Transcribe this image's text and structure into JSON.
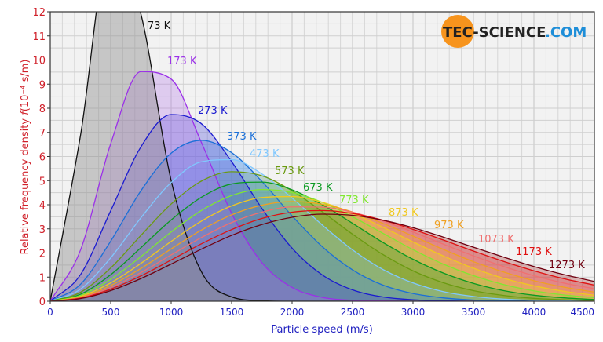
{
  "chart_data": {
    "type": "area",
    "title": "",
    "xlabel": "Particle speed (m/s)",
    "ylabel": "Relative frequency density f (10⁻⁴ s/m)",
    "ylabel_parts": {
      "text": "Relative frequency density ",
      "symbol": "f",
      "unit": "(10⁻⁴ s/m)"
    },
    "xlim": [
      0,
      4500
    ],
    "ylim": [
      0,
      12
    ],
    "x_ticks": [
      "0",
      "500",
      "1000",
      "1500",
      "2000",
      "2500",
      "3000",
      "3500",
      "4000",
      "4500"
    ],
    "y_ticks": [
      "0",
      "1",
      "2",
      "3",
      "4",
      "5",
      "6",
      "7",
      "8",
      "9",
      "10",
      "11",
      "12"
    ],
    "grid": true,
    "x": [
      0,
      250,
      500,
      750,
      1000,
      1250,
      1500,
      1750,
      2000,
      2250,
      2500,
      2750,
      3000,
      3250,
      3500,
      3750,
      4000,
      4250,
      4500
    ],
    "series": [
      {
        "name": "73 K",
        "color": "#111111",
        "fill": "#909090",
        "values": [
          0,
          6.87,
          14.81,
          11.9,
          5.0,
          1.22,
          0.18,
          0.02,
          0,
          0,
          0,
          0,
          0,
          0,
          0,
          0,
          0,
          0,
          0
        ]
      },
      {
        "name": "173 K",
        "color": "#9b30e8",
        "fill": "#b070e8",
        "values": [
          0,
          2.12,
          6.53,
          9.52,
          9.21,
          6.58,
          3.64,
          1.6,
          0.57,
          0.16,
          0.04,
          0.01,
          0,
          0,
          0,
          0,
          0,
          0,
          0
        ]
      },
      {
        "name": "273 K",
        "color": "#1a1ad0",
        "fill": "#4040d8",
        "values": [
          0,
          1.1,
          3.75,
          6.4,
          7.74,
          7.36,
          5.79,
          3.85,
          2.2,
          1.09,
          0.47,
          0.18,
          0.06,
          0.02,
          0,
          0,
          0,
          0,
          0
        ]
      },
      {
        "name": "373 K",
        "color": "#1a6fd8",
        "fill": "#3a80e0",
        "values": [
          0,
          0.7,
          2.49,
          4.58,
          6.14,
          6.67,
          6.16,
          4.97,
          3.54,
          2.26,
          1.3,
          0.67,
          0.32,
          0.14,
          0.05,
          0.02,
          0.01,
          0,
          0
        ]
      },
      {
        "name": "473 K",
        "color": "#80c8ff",
        "fill": "#90c8f8",
        "values": [
          0,
          0.5,
          1.8,
          3.46,
          4.92,
          5.78,
          5.87,
          5.28,
          4.28,
          3.16,
          2.13,
          1.32,
          0.76,
          0.4,
          0.2,
          0.09,
          0.04,
          0.02,
          0.01
        ]
      },
      {
        "name": "573 K",
        "color": "#6a9a10",
        "fill": "#7aa020",
        "values": [
          0,
          0.37,
          1.38,
          2.73,
          4.03,
          4.98,
          5.37,
          5.2,
          4.58,
          3.71,
          2.78,
          1.94,
          1.26,
          0.77,
          0.44,
          0.24,
          0.12,
          0.06,
          0.03
        ]
      },
      {
        "name": "673 K",
        "color": "#0a9a20",
        "fill": "#20a030",
        "values": [
          0,
          0.29,
          1.1,
          2.22,
          3.37,
          4.31,
          4.86,
          4.94,
          4.62,
          4.0,
          3.23,
          2.44,
          1.74,
          1.17,
          0.74,
          0.44,
          0.25,
          0.14,
          0.07
        ]
      },
      {
        "name": "773 K",
        "color": "#80e830",
        "fill": "#90e040",
        "values": [
          0,
          0.24,
          0.91,
          1.85,
          2.87,
          3.76,
          4.38,
          4.63,
          4.51,
          4.1,
          3.5,
          2.82,
          2.14,
          1.54,
          1.06,
          0.69,
          0.43,
          0.26,
          0.15
        ]
      },
      {
        "name": "873 K",
        "color": "#f0c820",
        "fill": "#f0d040",
        "values": [
          0,
          0.2,
          0.76,
          1.57,
          2.48,
          3.32,
          3.95,
          4.3,
          4.34,
          4.1,
          3.65,
          3.07,
          2.46,
          1.88,
          1.37,
          0.95,
          0.64,
          0.41,
          0.25
        ]
      },
      {
        "name": "973 K",
        "color": "#f0a020",
        "fill": "#f0a840",
        "values": [
          0,
          0.17,
          0.65,
          1.36,
          2.17,
          2.95,
          3.58,
          3.98,
          4.13,
          4.02,
          3.7,
          3.23,
          2.7,
          2.15,
          1.64,
          1.21,
          0.85,
          0.58,
          0.38
        ]
      },
      {
        "name": "1073 K",
        "color": "#f07070",
        "fill": "#f08080",
        "values": [
          0,
          0.15,
          0.57,
          1.19,
          1.92,
          2.64,
          3.26,
          3.69,
          3.91,
          3.9,
          3.69,
          3.32,
          2.87,
          2.37,
          1.88,
          1.44,
          1.06,
          0.75,
          0.52
        ]
      },
      {
        "name": "1173 K",
        "color": "#e01010",
        "fill": "#e03030",
        "values": [
          0,
          0.13,
          0.5,
          1.05,
          1.71,
          2.38,
          2.97,
          3.43,
          3.69,
          3.76,
          3.64,
          3.36,
          2.98,
          2.54,
          2.08,
          1.65,
          1.26,
          0.93,
          0.67
        ]
      },
      {
        "name": "1273 K",
        "color": "#700010",
        "fill": "#a02020",
        "values": [
          0,
          0.11,
          0.44,
          0.94,
          1.54,
          2.16,
          2.73,
          3.18,
          3.48,
          3.61,
          3.56,
          3.36,
          3.05,
          2.66,
          2.24,
          1.83,
          1.44,
          1.1,
          0.82
        ]
      }
    ],
    "axis_label_color": "#d0202a",
    "x_tick_color": "#2020c0",
    "y_tick_color": "#d0202a"
  },
  "logo": {
    "text_dark": "TEC-SCIENCE",
    "text_accent": ".COM",
    "full": "tec-science.com",
    "circle_color": "#f7941d",
    "accent_color": "#1e8ed8"
  }
}
